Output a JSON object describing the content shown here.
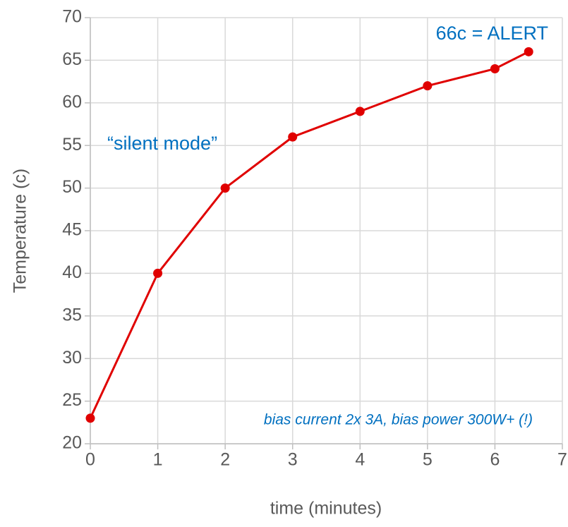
{
  "chart_data": {
    "type": "line",
    "x_label": "time (minutes)",
    "y_label": "Temperature (c)",
    "x": [
      0,
      1,
      2,
      3,
      4,
      5,
      6,
      6.5
    ],
    "series": [
      {
        "name": "Temperature",
        "color": "#e00000",
        "values": [
          23,
          40,
          50,
          56,
          59,
          62,
          64,
          66
        ]
      }
    ],
    "xlim": [
      0,
      7
    ],
    "xticks": [
      0,
      1,
      2,
      3,
      4,
      5,
      6,
      7
    ],
    "ylim": [
      20,
      70
    ],
    "yticks": [
      20,
      25,
      30,
      35,
      40,
      45,
      50,
      55,
      60,
      65,
      70
    ],
    "grid": true,
    "annotations": [
      "66c = ALERT",
      "“silent mode”",
      "bias current 2x 3A, bias power 300W+ (!)"
    ],
    "annotation_color": "#0070c0"
  }
}
